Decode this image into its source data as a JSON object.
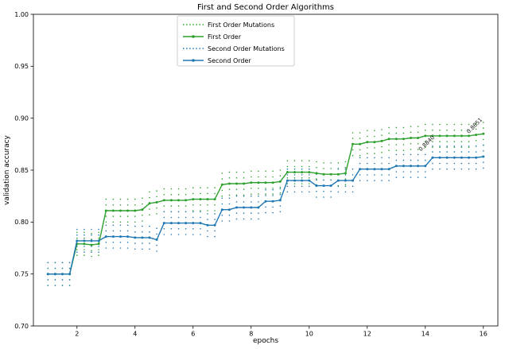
{
  "chart_data": {
    "type": "line",
    "title": "First and Second Order Algorithms",
    "xlabel": "epochs",
    "ylabel": "validation accuracy",
    "xlim": [
      0.5,
      16.5
    ],
    "ylim": [
      0.7,
      1.0
    ],
    "grid": false,
    "xticks": [
      2,
      4,
      6,
      8,
      10,
      12,
      14,
      16
    ],
    "xtick_labels": [
      "2",
      "4",
      "6",
      "8",
      "10",
      "12",
      "14",
      "16"
    ],
    "yticks": [
      0.7,
      0.75,
      0.8,
      0.85,
      0.9,
      0.95,
      1.0
    ],
    "ytick_labels": [
      "0.70",
      "0.75",
      "0.80",
      "0.85",
      "0.90",
      "0.95",
      "1.00"
    ],
    "legend": {
      "position": "upper center",
      "entries": [
        {
          "label": "First Order Mutations",
          "color": "#2ca02c",
          "style": "dotted",
          "marker": false
        },
        {
          "label": "First Order",
          "color": "#2ca02c",
          "style": "solid",
          "marker": true
        },
        {
          "label": "Second Order Mutations",
          "color": "#1f77b4",
          "style": "dotted",
          "marker": false
        },
        {
          "label": "Second Order",
          "color": "#1f77b4",
          "style": "solid",
          "marker": true
        }
      ]
    },
    "mutation_offsets": [
      -0.011,
      -0.0055,
      0.0055,
      0.011
    ],
    "x": [
      1,
      1.25,
      1.5,
      1.75,
      2,
      2.25,
      2.5,
      2.75,
      3,
      3.25,
      3.5,
      3.75,
      4,
      4.25,
      4.5,
      4.75,
      5,
      5.25,
      5.5,
      5.75,
      6,
      6.25,
      6.5,
      6.75,
      7,
      7.25,
      7.5,
      7.75,
      8,
      8.25,
      8.5,
      8.75,
      9,
      9.25,
      9.5,
      9.75,
      10,
      10.25,
      10.5,
      10.75,
      11,
      11.25,
      11.5,
      11.75,
      12,
      12.25,
      12.5,
      12.75,
      13,
      13.25,
      13.5,
      13.75,
      14,
      14.25,
      14.5,
      14.75,
      15,
      15.25,
      15.5,
      15.75,
      16
    ],
    "series": [
      {
        "name": "First Order",
        "color": "#2ca02c",
        "y": [
          0.75,
          0.75,
          0.75,
          0.75,
          0.779,
          0.779,
          0.778,
          0.779,
          0.811,
          0.811,
          0.811,
          0.811,
          0.811,
          0.812,
          0.818,
          0.819,
          0.821,
          0.821,
          0.821,
          0.821,
          0.822,
          0.822,
          0.822,
          0.822,
          0.836,
          0.837,
          0.837,
          0.837,
          0.838,
          0.838,
          0.838,
          0.838,
          0.839,
          0.848,
          0.848,
          0.848,
          0.848,
          0.847,
          0.846,
          0.846,
          0.846,
          0.847,
          0.875,
          0.875,
          0.877,
          0.877,
          0.878,
          0.88,
          0.88,
          0.88,
          0.881,
          0.881,
          0.883,
          0.883,
          0.883,
          0.883,
          0.883,
          0.883,
          0.883,
          0.884,
          0.885
        ]
      },
      {
        "name": "Second Order",
        "color": "#1f77b4",
        "y": [
          0.75,
          0.75,
          0.75,
          0.75,
          0.782,
          0.782,
          0.782,
          0.782,
          0.786,
          0.786,
          0.786,
          0.786,
          0.785,
          0.785,
          0.785,
          0.783,
          0.799,
          0.799,
          0.799,
          0.799,
          0.799,
          0.799,
          0.797,
          0.797,
          0.812,
          0.812,
          0.814,
          0.814,
          0.814,
          0.814,
          0.82,
          0.82,
          0.821,
          0.84,
          0.84,
          0.84,
          0.84,
          0.835,
          0.835,
          0.835,
          0.84,
          0.84,
          0.84,
          0.851,
          0.851,
          0.851,
          0.851,
          0.851,
          0.854,
          0.854,
          0.854,
          0.854,
          0.854,
          0.862,
          0.862,
          0.862,
          0.862,
          0.862,
          0.862,
          0.862,
          0.863
        ]
      }
    ],
    "annotations": [
      {
        "x": 13.85,
        "y": 0.868,
        "text": "0.8840",
        "rotation": -45
      },
      {
        "x": 15.5,
        "y": 0.885,
        "text": "0.8851",
        "rotation": -45
      }
    ]
  }
}
